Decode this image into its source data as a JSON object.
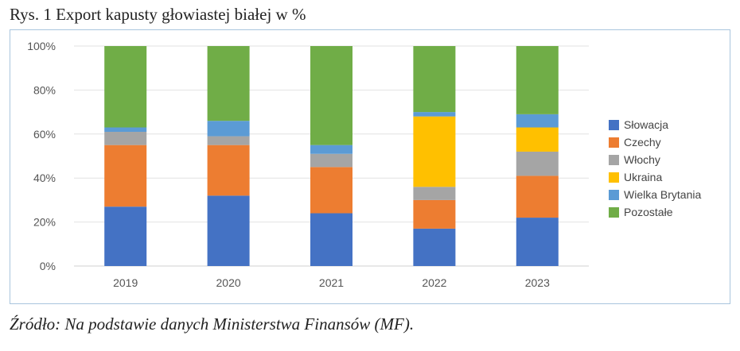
{
  "title": "Rys. 1 Export kapusty głowiastej białej w %",
  "source": "Źródło: Na podstawie danych Ministerstwa Finansów (MF).",
  "chart_data": {
    "type": "bar",
    "stacked": true,
    "categories": [
      "2019",
      "2020",
      "2021",
      "2022",
      "2023"
    ],
    "ylim": [
      0,
      100
    ],
    "yticks": [
      "0%",
      "20%",
      "40%",
      "60%",
      "80%",
      "100%"
    ],
    "grid": true,
    "legend_position": "right",
    "series": [
      {
        "name": "Słowacja",
        "color": "#4472c4",
        "values": [
          27,
          32,
          24,
          17,
          22
        ]
      },
      {
        "name": "Czechy",
        "color": "#ed7d31",
        "values": [
          28,
          23,
          21,
          13,
          19
        ]
      },
      {
        "name": "Włochy",
        "color": "#a5a5a5",
        "values": [
          6,
          4,
          6,
          6,
          11
        ]
      },
      {
        "name": "Ukraina",
        "color": "#ffc000",
        "values": [
          0,
          0,
          0,
          32,
          11
        ]
      },
      {
        "name": "Wielka Brytania",
        "color": "#5b9bd5",
        "values": [
          2,
          7,
          4,
          2,
          6
        ]
      },
      {
        "name": "Pozostałe",
        "color": "#70ad47",
        "values": [
          37,
          34,
          45,
          30,
          31
        ]
      }
    ]
  }
}
